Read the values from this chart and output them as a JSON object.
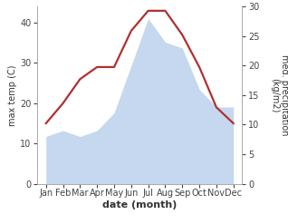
{
  "months": [
    "Jan",
    "Feb",
    "Mar",
    "Apr",
    "May",
    "Jun",
    "Jul",
    "Aug",
    "Sep",
    "Oct",
    "Nov",
    "Dec"
  ],
  "temperature": [
    15,
    20,
    26,
    29,
    29,
    38,
    43,
    43,
    37,
    29,
    19,
    15
  ],
  "precipitation": [
    8,
    9,
    8,
    9,
    12,
    20,
    28,
    24,
    23,
    16,
    13,
    13
  ],
  "temp_color": "#b03030",
  "precip_color": "#c5d8f0",
  "precip_edge_color": "#c5d8f0",
  "bg_color": "#ffffff",
  "xlabel": "date (month)",
  "ylabel_left": "max temp (C)",
  "ylabel_right": "med. precipitation\n(kg/m2)",
  "ylim_left": [
    0,
    44
  ],
  "ylim_right": [
    0,
    30
  ],
  "yticks_left": [
    0,
    10,
    20,
    30,
    40
  ],
  "yticks_right": [
    0,
    5,
    10,
    15,
    20,
    25,
    30
  ],
  "xlabel_fontsize": 8,
  "ylabel_fontsize": 7,
  "tick_fontsize": 7,
  "linewidth": 1.6
}
